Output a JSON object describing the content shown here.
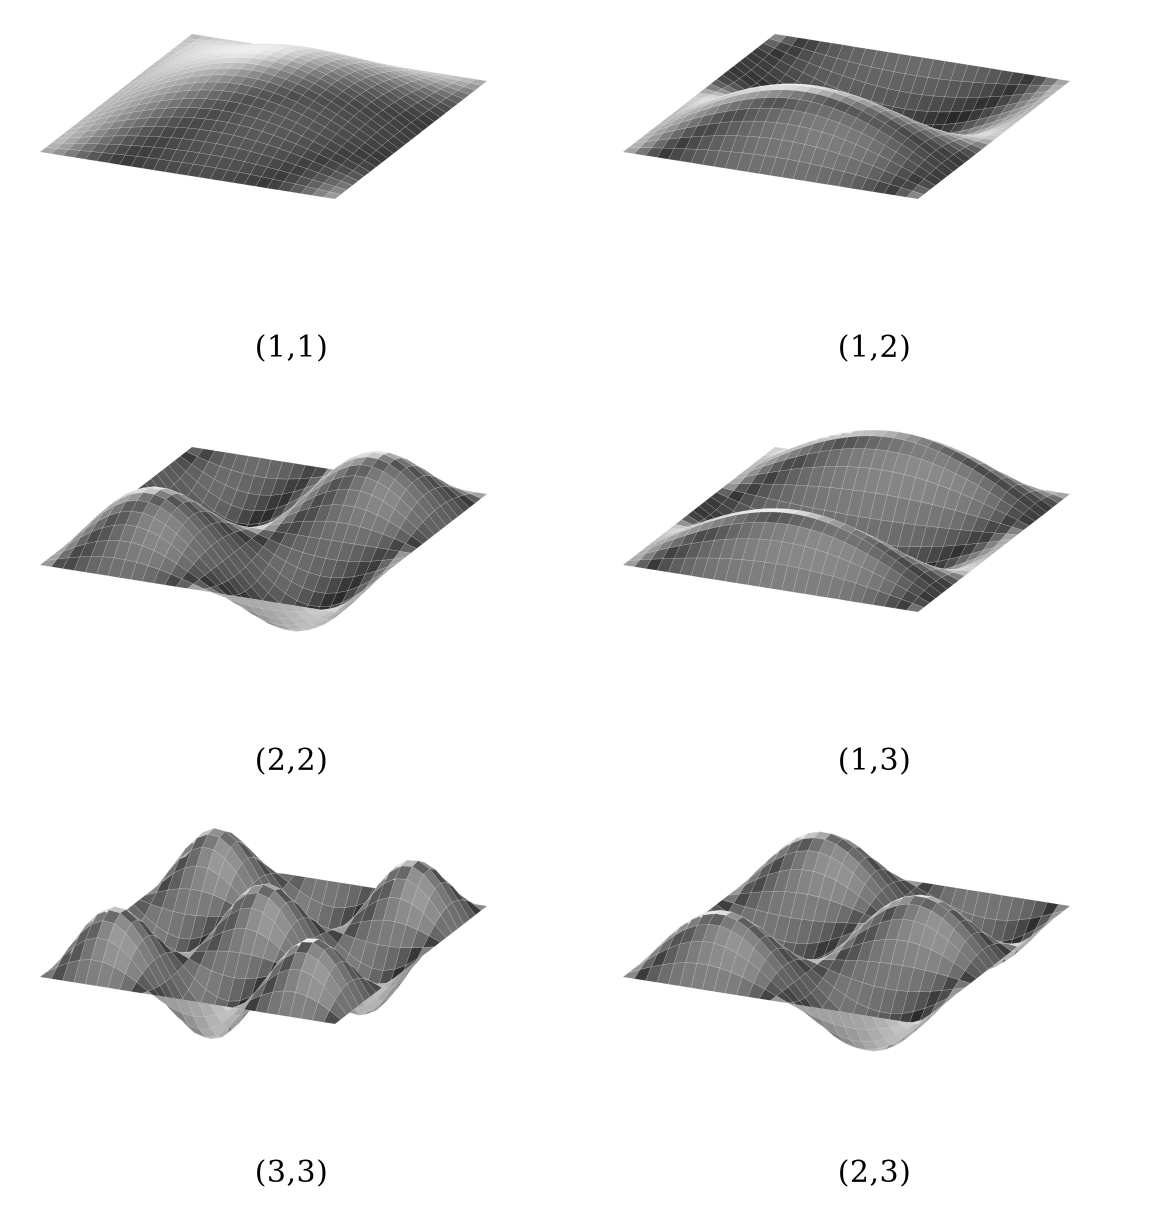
{
  "figure": {
    "panels": [
      {
        "mode": [
          1,
          1
        ],
        "label": "(1,1)"
      },
      {
        "mode": [
          1,
          2
        ],
        "label": "(1,2)"
      },
      {
        "mode": [
          2,
          2
        ],
        "label": "(2,2)"
      },
      {
        "mode": [
          1,
          3
        ],
        "label": "(1,3)"
      },
      {
        "mode": [
          3,
          3
        ],
        "label": "(3,3)"
      },
      {
        "mode": [
          2,
          3
        ],
        "label": "(2,3)"
      }
    ],
    "surface": "sin(m·π·x)·sin(n·π·y) on the unit square",
    "colors": {
      "background": "#ffffff",
      "mesh": "#e6e6e6",
      "text": "#000000"
    }
  }
}
